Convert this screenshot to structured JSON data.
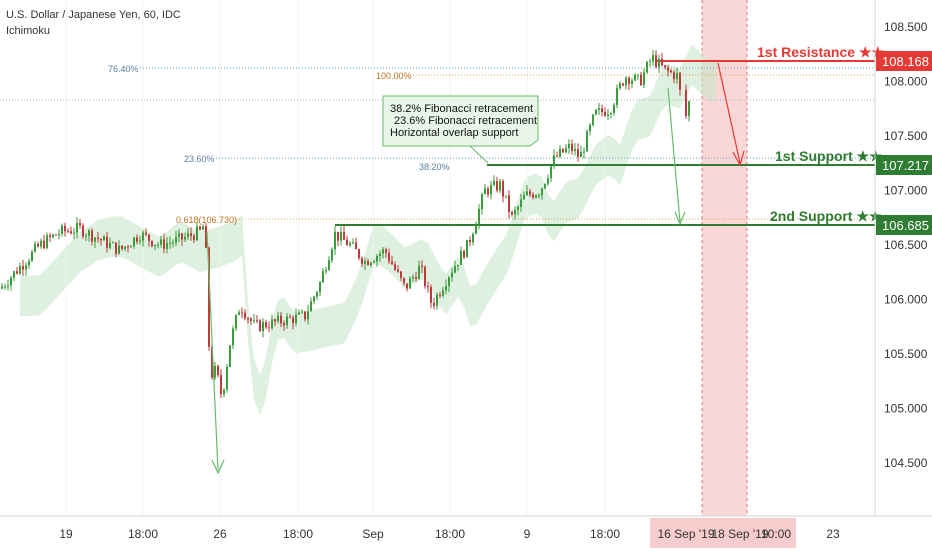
{
  "header": {
    "symbol_line": "U.S. Dollar / Japanese Yen, 60, IDC",
    "indicator": "Ichimoku"
  },
  "colors": {
    "background": "#ffffff",
    "candle_up": "#3a9c3a",
    "candle_down": "#c13a3a",
    "cloud_bull": "#c8e6c9",
    "cloud_bear": "#f6d2d2",
    "resistance": "#e53935",
    "support": "#2e7d32",
    "fib_line": "#6a9fc5",
    "highlight_band": "#f4b6b6",
    "axis_text": "#333333",
    "note_bg": "#e8f5e9",
    "note_border": "#66bb6a"
  },
  "chart_data": {
    "type": "candlestick",
    "symbol": "U.S. Dollar / Japanese Yen",
    "timeframe": "60",
    "source": "IDC",
    "ylim": [
      104.25,
      108.75
    ],
    "y_ticks": [
      "108.500",
      "108.000",
      "107.500",
      "107.000",
      "106.500",
      "106.000",
      "105.500",
      "105.000",
      "104.500"
    ],
    "x_ticks": [
      "19",
      "18:00",
      "26",
      "18:00",
      "Sep",
      "18:00",
      "9",
      "18:00",
      "16 Sep '19",
      "18 Sep '19",
      "10:00",
      "23"
    ],
    "levels": [
      {
        "label": "1st Resistance ★★",
        "value": 108.168,
        "value_label": "108.168",
        "kind": "resistance"
      },
      {
        "label": "1st Support ★★",
        "value": 107.217,
        "value_label": "107.217",
        "kind": "support"
      },
      {
        "label": "2nd Support ★★",
        "value": 106.685,
        "value_label": "106.685",
        "kind": "support"
      }
    ],
    "fibonacci": [
      {
        "label": "76.40%",
        "value": 108.12
      },
      {
        "label": "100.00%",
        "value": 108.05
      },
      {
        "label": "23.60%",
        "value": 107.27
      },
      {
        "label": "38.20%",
        "value": 107.21
      },
      {
        "label": "0.618(106.730)",
        "value": 106.73
      }
    ],
    "annotation": [
      "38.2% Fibonacci retracement",
      "23.6% Fibonacci retracement",
      "Horizontal overlap support"
    ],
    "current_price_line": 107.83,
    "price_path": [
      [
        0,
        106.1
      ],
      [
        20,
        106.3
      ],
      [
        40,
        106.5
      ],
      [
        60,
        106.62
      ],
      [
        80,
        106.65
      ],
      [
        100,
        106.55
      ],
      [
        120,
        106.45
      ],
      [
        140,
        106.6
      ],
      [
        160,
        106.5
      ],
      [
        180,
        106.55
      ],
      [
        200,
        106.62
      ],
      [
        205,
        106.7
      ],
      [
        210,
        105.3
      ],
      [
        216,
        105.35
      ],
      [
        222,
        105.1
      ],
      [
        230,
        105.6
      ],
      [
        240,
        105.95
      ],
      [
        255,
        105.75
      ],
      [
        270,
        105.78
      ],
      [
        290,
        105.82
      ],
      [
        305,
        105.85
      ],
      [
        320,
        106.15
      ],
      [
        335,
        106.6
      ],
      [
        350,
        106.5
      ],
      [
        365,
        106.35
      ],
      [
        385,
        106.45
      ],
      [
        405,
        106.1
      ],
      [
        420,
        106.3
      ],
      [
        432,
        105.95
      ],
      [
        450,
        106.25
      ],
      [
        468,
        106.5
      ],
      [
        485,
        107.0
      ],
      [
        500,
        107.05
      ],
      [
        512,
        106.75
      ],
      [
        525,
        106.95
      ],
      [
        540,
        107.0
      ],
      [
        555,
        107.3
      ],
      [
        570,
        107.4
      ],
      [
        580,
        107.3
      ],
      [
        595,
        107.7
      ],
      [
        610,
        107.75
      ],
      [
        625,
        108.05
      ],
      [
        640,
        108.0
      ],
      [
        652,
        108.22
      ],
      [
        665,
        108.1
      ],
      [
        678,
        108.05
      ],
      [
        684,
        107.6
      ],
      [
        690,
        107.85
      ]
    ]
  }
}
